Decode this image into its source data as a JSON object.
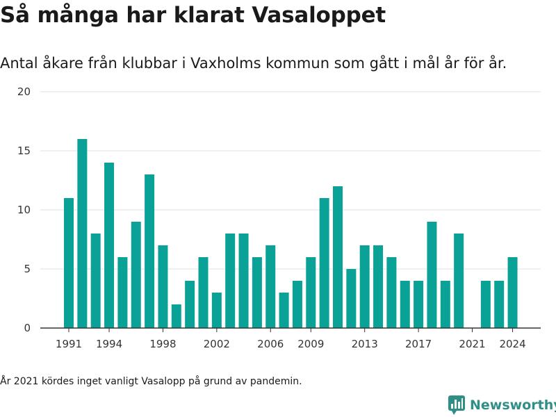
{
  "title": "Så många har klarat Vasaloppet",
  "subtitle": "Antal åkare från klubbar i Vaxholms kommun som gått i mål år för år.",
  "note": "År 2021 kördes inget vanligt Vasalopp på grund av pandemin.",
  "logo": {
    "text": "Newsworthy",
    "icon": "bar-chart-logo-icon"
  },
  "colors": {
    "bar": "#0aa197",
    "grid": "#e2e2e2",
    "axis": "#333333",
    "brand": "#2f8f86"
  },
  "chart_data": {
    "type": "bar",
    "x": [
      1991,
      1992,
      1993,
      1994,
      1995,
      1996,
      1997,
      1998,
      1999,
      2000,
      2001,
      2002,
      2003,
      2004,
      2005,
      2006,
      2007,
      2008,
      2009,
      2010,
      2011,
      2012,
      2013,
      2014,
      2015,
      2016,
      2017,
      2018,
      2019,
      2020,
      2021,
      2022,
      2023,
      2024
    ],
    "values": [
      11,
      16,
      8,
      14,
      6,
      9,
      13,
      7,
      2,
      4,
      6,
      3,
      8,
      8,
      6,
      7,
      3,
      4,
      6,
      11,
      12,
      5,
      7,
      7,
      6,
      4,
      4,
      9,
      4,
      8,
      0,
      4,
      4,
      6
    ],
    "x_tick_labels": [
      "1991",
      "1994",
      "1998",
      "2002",
      "2006",
      "2009",
      "2013",
      "2017",
      "2021",
      "2024"
    ],
    "y_ticks": [
      0,
      5,
      10,
      15,
      20
    ],
    "ylim": [
      0,
      20
    ],
    "grid": true
  }
}
